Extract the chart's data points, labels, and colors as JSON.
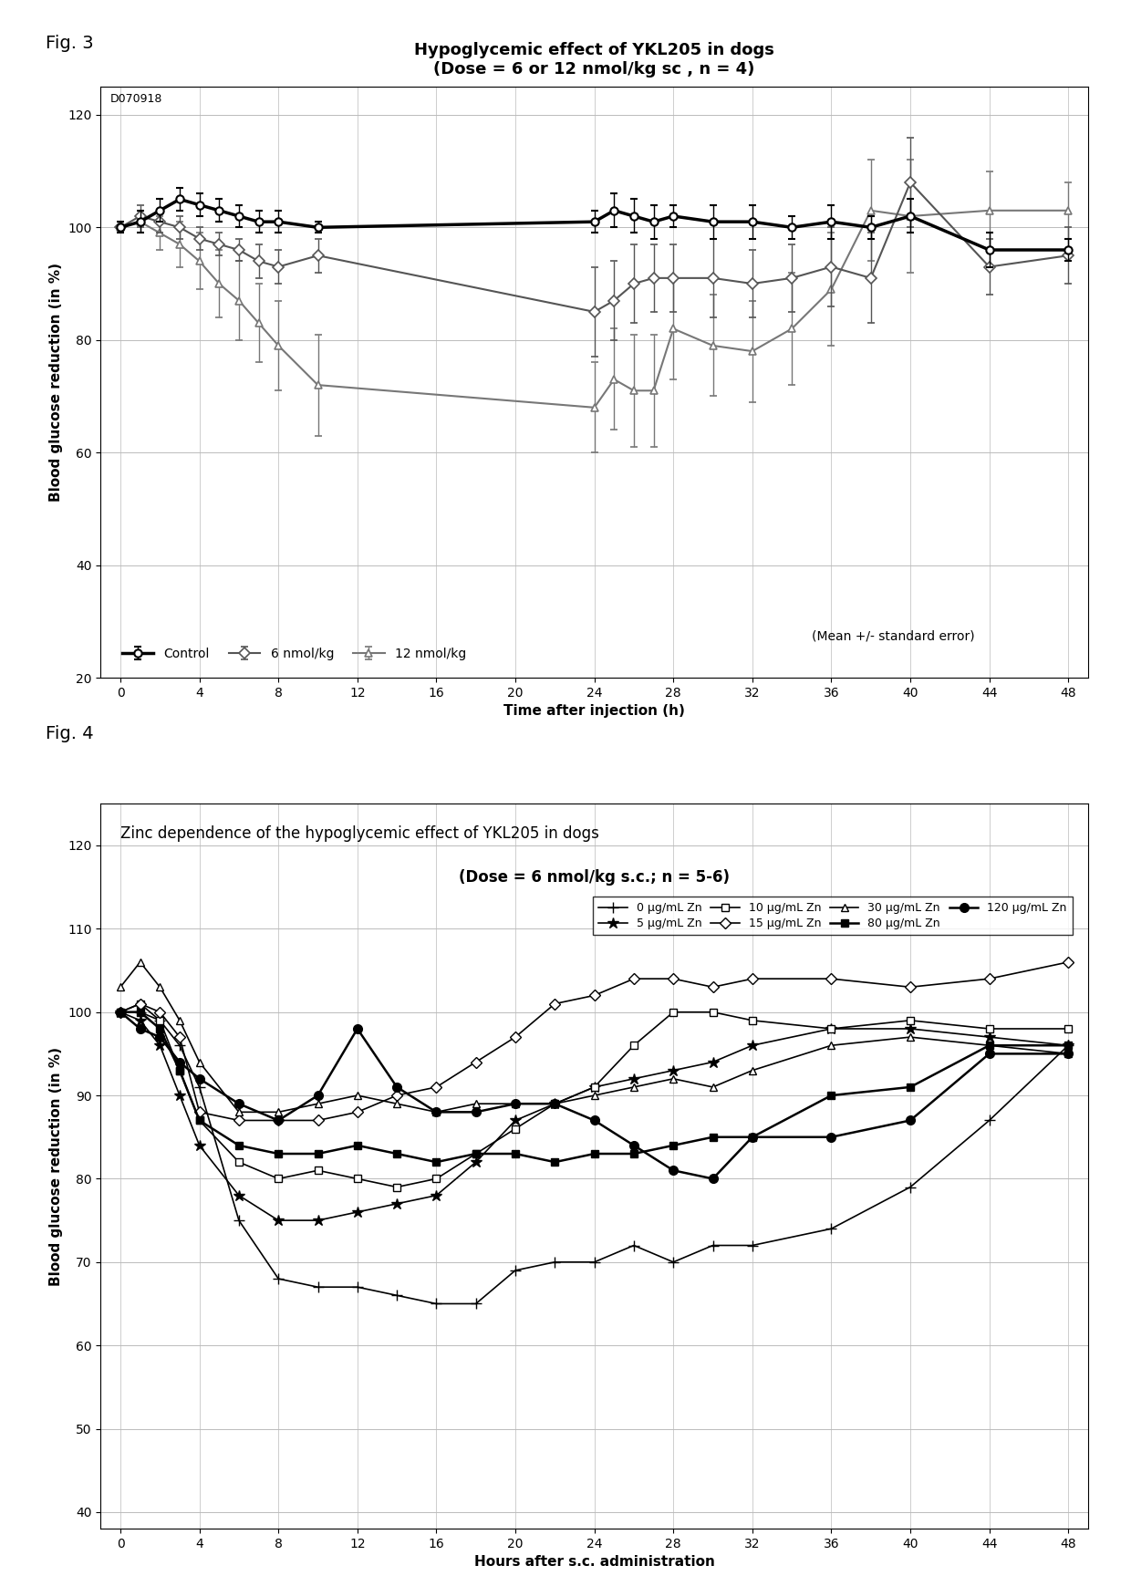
{
  "fig3": {
    "title_line1": "Hypoglycemic effect of YKL205 in dogs",
    "title_line2": "(Dose = 6 or 12 nmol/kg sc , n = 4)",
    "watermark": "D070918",
    "xlabel": "Time after injection (h)",
    "ylabel": "Blood glucose reduction (in %)",
    "ylim": [
      20,
      125
    ],
    "yticks": [
      20,
      40,
      60,
      80,
      100,
      120
    ],
    "xlim": [
      -1,
      49
    ],
    "xticks": [
      0,
      4,
      8,
      12,
      16,
      20,
      24,
      28,
      32,
      36,
      40,
      44,
      48
    ],
    "legend_note": "(Mean +/- standard error)",
    "series": {
      "control": {
        "label": "Control",
        "x": [
          0,
          1,
          2,
          3,
          4,
          5,
          6,
          7,
          8,
          10,
          24,
          25,
          26,
          27,
          28,
          30,
          32,
          34,
          36,
          38,
          40,
          44,
          48
        ],
        "y": [
          100,
          101,
          103,
          105,
          104,
          103,
          102,
          101,
          101,
          100,
          101,
          103,
          102,
          101,
          102,
          101,
          101,
          100,
          101,
          100,
          102,
          96,
          96
        ],
        "yerr": [
          1,
          2,
          2,
          2,
          2,
          2,
          2,
          2,
          2,
          1,
          2,
          3,
          3,
          3,
          2,
          3,
          3,
          2,
          3,
          2,
          3,
          3,
          2
        ],
        "color": "#000000",
        "marker": "o",
        "linewidth": 2.5,
        "markersize": 6
      },
      "dose6": {
        "label": "6 nmol/kg",
        "x": [
          0,
          1,
          2,
          3,
          4,
          5,
          6,
          7,
          8,
          10,
          24,
          25,
          26,
          27,
          28,
          30,
          32,
          34,
          36,
          38,
          40,
          44,
          48
        ],
        "y": [
          100,
          102,
          101,
          100,
          98,
          97,
          96,
          94,
          93,
          95,
          85,
          87,
          90,
          91,
          91,
          91,
          90,
          91,
          93,
          91,
          108,
          93,
          95
        ],
        "yerr": [
          1,
          2,
          2,
          2,
          2,
          2,
          2,
          3,
          3,
          3,
          8,
          7,
          7,
          6,
          6,
          7,
          6,
          6,
          7,
          8,
          8,
          5,
          5
        ],
        "color": "#555555",
        "marker": "D",
        "linewidth": 1.5,
        "markersize": 6
      },
      "dose12": {
        "label": "12 nmol/kg",
        "x": [
          0,
          1,
          2,
          3,
          4,
          5,
          6,
          7,
          8,
          10,
          24,
          25,
          26,
          27,
          28,
          30,
          32,
          34,
          36,
          38,
          40,
          44,
          48
        ],
        "y": [
          100,
          101,
          99,
          97,
          94,
          90,
          87,
          83,
          79,
          72,
          68,
          73,
          71,
          71,
          82,
          79,
          78,
          82,
          89,
          103,
          102,
          103,
          103
        ],
        "yerr": [
          1,
          2,
          3,
          4,
          5,
          6,
          7,
          7,
          8,
          9,
          8,
          9,
          10,
          10,
          9,
          9,
          9,
          10,
          10,
          9,
          10,
          7,
          5
        ],
        "color": "#777777",
        "marker": "^",
        "linewidth": 1.5,
        "markersize": 6
      }
    }
  },
  "fig4": {
    "title_line1": "Zinc dependence of the hypoglycemic effect of YKL205 in dogs",
    "title_line2": "(Dose = 6 nmol/kg s.c.; n = 5-6)",
    "xlabel": "Hours after s.c. administration",
    "ylabel": "Blood glucose reduction (in %)",
    "ylim": [
      38,
      125
    ],
    "yticks": [
      40,
      50,
      60,
      70,
      80,
      90,
      100,
      110,
      120
    ],
    "xlim": [
      -1,
      49
    ],
    "xticks": [
      0,
      4,
      8,
      12,
      16,
      20,
      24,
      28,
      32,
      36,
      40,
      44,
      48
    ],
    "series": {
      "zn0": {
        "label": "0 µg/mL Zn",
        "x": [
          0,
          1,
          2,
          3,
          4,
          6,
          8,
          10,
          12,
          14,
          16,
          18,
          20,
          22,
          24,
          26,
          28,
          30,
          32,
          36,
          40,
          44,
          48
        ],
        "y": [
          100,
          100,
          99,
          96,
          91,
          75,
          68,
          67,
          67,
          66,
          65,
          65,
          69,
          70,
          70,
          72,
          70,
          72,
          72,
          74,
          79,
          87,
          96
        ],
        "color": "#000000",
        "marker": "+",
        "linewidth": 1.2,
        "markersize": 8,
        "fillstyle": "none"
      },
      "zn5": {
        "label": "5 µg/mL Zn",
        "x": [
          0,
          1,
          2,
          3,
          4,
          6,
          8,
          10,
          12,
          14,
          16,
          18,
          20,
          22,
          24,
          26,
          28,
          30,
          32,
          36,
          40,
          44,
          48
        ],
        "y": [
          100,
          99,
          96,
          90,
          84,
          78,
          75,
          75,
          76,
          77,
          78,
          82,
          87,
          89,
          91,
          92,
          93,
          94,
          96,
          98,
          98,
          97,
          96
        ],
        "color": "#000000",
        "marker": "*",
        "linewidth": 1.2,
        "markersize": 9,
        "fillstyle": "none"
      },
      "zn10": {
        "label": "10 µg/mL Zn",
        "x": [
          0,
          1,
          2,
          3,
          4,
          6,
          8,
          10,
          12,
          14,
          16,
          18,
          20,
          22,
          24,
          26,
          28,
          30,
          32,
          36,
          40,
          44,
          48
        ],
        "y": [
          100,
          101,
          99,
          93,
          87,
          82,
          80,
          81,
          80,
          79,
          80,
          83,
          86,
          89,
          91,
          96,
          100,
          100,
          99,
          98,
          99,
          98,
          98
        ],
        "color": "#000000",
        "marker": "s",
        "linewidth": 1.2,
        "markersize": 6,
        "fillstyle": "none"
      },
      "zn15": {
        "label": "15 µg/mL Zn",
        "x": [
          0,
          1,
          2,
          3,
          4,
          6,
          8,
          10,
          12,
          14,
          16,
          18,
          20,
          22,
          24,
          26,
          28,
          30,
          32,
          36,
          40,
          44,
          48
        ],
        "y": [
          100,
          101,
          100,
          97,
          88,
          87,
          87,
          87,
          88,
          90,
          91,
          94,
          97,
          101,
          102,
          104,
          104,
          103,
          104,
          104,
          103,
          104,
          106
        ],
        "color": "#000000",
        "marker": "D",
        "linewidth": 1.2,
        "markersize": 6,
        "fillstyle": "none"
      },
      "zn30": {
        "label": "30 µg/mL Zn",
        "x": [
          0,
          1,
          2,
          3,
          4,
          6,
          8,
          10,
          12,
          14,
          16,
          18,
          20,
          22,
          24,
          26,
          28,
          30,
          32,
          36,
          40,
          44,
          48
        ],
        "y": [
          103,
          106,
          103,
          99,
          94,
          88,
          88,
          89,
          90,
          89,
          88,
          89,
          89,
          89,
          90,
          91,
          92,
          91,
          93,
          96,
          97,
          96,
          95
        ],
        "color": "#000000",
        "marker": "^",
        "linewidth": 1.2,
        "markersize": 6,
        "fillstyle": "none"
      },
      "zn80": {
        "label": "80 µg/mL Zn",
        "x": [
          0,
          1,
          2,
          3,
          4,
          6,
          8,
          10,
          12,
          14,
          16,
          18,
          20,
          22,
          24,
          26,
          28,
          30,
          32,
          36,
          40,
          44,
          48
        ],
        "y": [
          100,
          100,
          98,
          93,
          87,
          84,
          83,
          83,
          84,
          83,
          82,
          83,
          83,
          82,
          83,
          83,
          84,
          85,
          85,
          90,
          91,
          96,
          96
        ],
        "color": "#000000",
        "marker": "s",
        "linewidth": 1.8,
        "markersize": 6,
        "fillstyle": "full"
      },
      "zn120": {
        "label": "120 µg/mL Zn",
        "x": [
          0,
          1,
          2,
          3,
          4,
          6,
          8,
          10,
          12,
          14,
          16,
          18,
          20,
          22,
          24,
          26,
          28,
          30,
          32,
          36,
          40,
          44,
          48
        ],
        "y": [
          100,
          98,
          97,
          94,
          92,
          89,
          87,
          90,
          98,
          91,
          88,
          88,
          89,
          89,
          87,
          84,
          81,
          80,
          85,
          85,
          87,
          95,
          95
        ],
        "color": "#000000",
        "marker": "o",
        "linewidth": 1.8,
        "markersize": 7,
        "fillstyle": "full"
      }
    }
  }
}
